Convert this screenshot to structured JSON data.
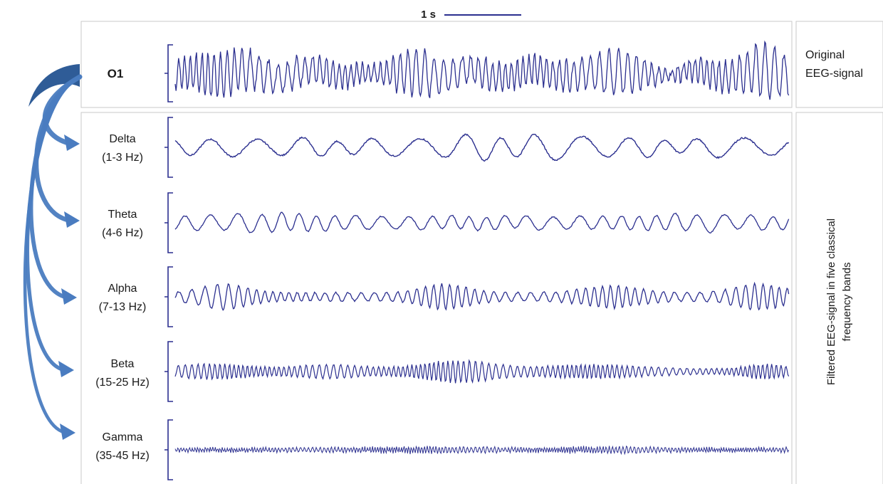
{
  "scale_bar": {
    "label": "1 s"
  },
  "original": {
    "channel": "O1",
    "side_label_line1": "Original",
    "side_label_line2": "EEG-signal"
  },
  "bands": [
    {
      "name": "Delta",
      "range": "(1-3 Hz)"
    },
    {
      "name": "Theta",
      "range": "(4-6 Hz)"
    },
    {
      "name": "Alpha",
      "range": "(7-13 Hz)"
    },
    {
      "name": "Beta",
      "range": "(15-25 Hz)"
    },
    {
      "name": "Gamma",
      "range": "(35-45 Hz)"
    }
  ],
  "side_label_filtered": {
    "line1": "Filtered  EEG-signal  in  five  classical",
    "line2": "frequency  bands"
  },
  "colors": {
    "trace": "#2b2f8f",
    "arrow": "#4a7cc0",
    "arrow_dark": "#2f5c97",
    "panel_border": "#c8c8c8",
    "scale_text": "#2b2f8f"
  }
}
